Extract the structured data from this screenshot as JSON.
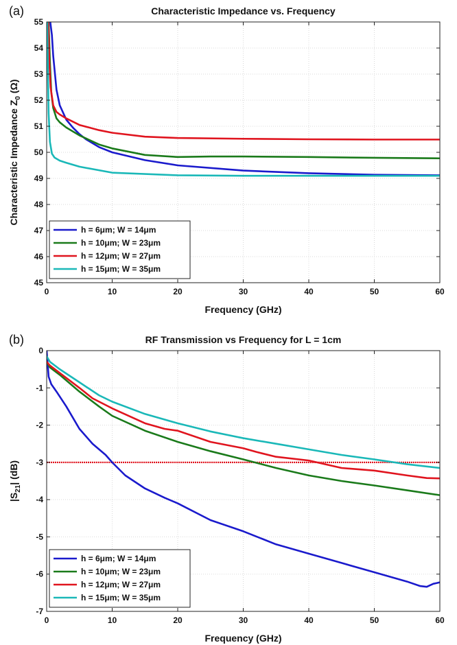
{
  "chart_data": [
    {
      "type": "line",
      "panel_label": "(a)",
      "title": "Characteristic Impedance vs. Frequency",
      "xlabel": "Frequency (GHz)",
      "ylabel": "Characteristic Impedance Z",
      "ylabel_sub": "0",
      "ylabel_unit": " (Ω)",
      "xlim": [
        0,
        60
      ],
      "ylim": [
        45,
        55
      ],
      "xticks": [
        0,
        10,
        20,
        30,
        40,
        50,
        60
      ],
      "yticks": [
        45,
        46,
        47,
        48,
        49,
        50,
        51,
        52,
        53,
        54,
        55
      ],
      "grid": true,
      "legend_position": "bottom-left",
      "series": [
        {
          "name": "h = 6μm; W = 14μm",
          "color": "#1a1acc",
          "x": [
            0.55,
            0.8,
            1,
            1.5,
            2,
            3,
            4,
            5,
            6,
            8,
            10,
            15,
            20,
            30,
            40,
            50,
            60
          ],
          "y": [
            55,
            54.5,
            53.7,
            52.4,
            51.8,
            51.25,
            50.95,
            50.7,
            50.5,
            50.2,
            50.0,
            49.7,
            49.5,
            49.3,
            49.2,
            49.14,
            49.12
          ]
        },
        {
          "name": "h = 10μm; W = 23μm",
          "color": "#1a7a1a",
          "x": [
            0.3,
            0.5,
            0.7,
            1,
            1.5,
            2,
            3,
            5,
            8,
            10,
            15,
            20,
            25,
            30,
            40,
            50,
            60
          ],
          "y": [
            55,
            53.5,
            52.3,
            51.7,
            51.3,
            51.15,
            50.95,
            50.65,
            50.3,
            50.15,
            49.9,
            49.82,
            49.84,
            49.84,
            49.82,
            49.79,
            49.77
          ]
        },
        {
          "name": "h = 12μm; W = 27μm",
          "color": "#e0141e",
          "x": [
            0.25,
            0.4,
            0.6,
            1,
            1.5,
            2,
            3,
            5,
            8,
            10,
            15,
            20,
            30,
            40,
            50,
            60
          ],
          "y": [
            55,
            53.5,
            52.5,
            51.8,
            51.55,
            51.45,
            51.3,
            51.05,
            50.85,
            50.75,
            50.6,
            50.55,
            50.52,
            50.5,
            50.49,
            50.49
          ]
        },
        {
          "name": "h = 15μm; W = 35μm",
          "color": "#1ab8b8",
          "x": [
            0.1,
            0.2,
            0.3,
            0.5,
            0.8,
            1.2,
            2,
            3,
            5,
            10,
            20,
            30,
            40,
            50,
            60
          ],
          "y": [
            55,
            53,
            51.5,
            50.4,
            49.95,
            49.8,
            49.68,
            49.6,
            49.45,
            49.22,
            49.12,
            49.1,
            49.1,
            49.1,
            49.1
          ]
        }
      ]
    },
    {
      "type": "line",
      "panel_label": "(b)",
      "title": "RF Transmission vs Frequency for L = 1cm",
      "xlabel": "Frequency (GHz)",
      "ylabel": "|S",
      "ylabel_sub": "21",
      "ylabel_unit": "| (dB)",
      "xlim": [
        0,
        60
      ],
      "ylim": [
        -7,
        0
      ],
      "xticks": [
        0,
        10,
        20,
        30,
        40,
        50,
        60
      ],
      "yticks": [
        -7,
        -6,
        -5,
        -4,
        -3,
        -2,
        -1,
        0
      ],
      "grid": true,
      "legend_position": "bottom-left",
      "reference_line": {
        "y": -3,
        "color": "#e0141e"
      },
      "series": [
        {
          "name": "h = 6μm; W = 14μm",
          "color": "#1a1acc",
          "x": [
            0,
            0.3,
            0.7,
            1.5,
            3,
            5,
            7,
            9,
            10,
            12,
            15,
            18,
            20,
            25,
            30,
            35,
            40,
            45,
            50,
            55,
            57,
            58,
            59,
            60
          ],
          "y": [
            0,
            -0.7,
            -0.9,
            -1.1,
            -1.5,
            -2.1,
            -2.5,
            -2.8,
            -3.0,
            -3.35,
            -3.7,
            -3.95,
            -4.1,
            -4.55,
            -4.85,
            -5.2,
            -5.45,
            -5.7,
            -5.95,
            -6.2,
            -6.32,
            -6.34,
            -6.26,
            -6.22
          ]
        },
        {
          "name": "h = 10μm; W = 23μm",
          "color": "#1a7a1a",
          "x": [
            0,
            0.5,
            2,
            5,
            8,
            10,
            15,
            20,
            25,
            30,
            35,
            40,
            45,
            50,
            55,
            60
          ],
          "y": [
            -0.3,
            -0.45,
            -0.65,
            -1.1,
            -1.5,
            -1.75,
            -2.15,
            -2.45,
            -2.7,
            -2.92,
            -3.15,
            -3.35,
            -3.5,
            -3.62,
            -3.75,
            -3.88
          ]
        },
        {
          "name": "h = 12μm; W = 27μm",
          "color": "#e0141e",
          "x": [
            0,
            0.5,
            2,
            5,
            7,
            10,
            15,
            18,
            20,
            25,
            30,
            32,
            35,
            40,
            45,
            50,
            55,
            58,
            60
          ],
          "y": [
            -0.3,
            -0.4,
            -0.6,
            -1.0,
            -1.28,
            -1.55,
            -1.95,
            -2.1,
            -2.15,
            -2.45,
            -2.62,
            -2.72,
            -2.85,
            -2.95,
            -3.15,
            -3.22,
            -3.35,
            -3.42,
            -3.43
          ]
        },
        {
          "name": "h = 15μm; W = 35μm",
          "color": "#1ab8b8",
          "x": [
            0,
            0.5,
            2,
            5,
            8,
            10,
            15,
            20,
            25,
            30,
            35,
            40,
            45,
            50,
            55,
            60
          ],
          "y": [
            -0.15,
            -0.3,
            -0.5,
            -0.85,
            -1.2,
            -1.37,
            -1.7,
            -1.95,
            -2.17,
            -2.35,
            -2.5,
            -2.65,
            -2.8,
            -2.92,
            -3.05,
            -3.15
          ]
        }
      ]
    }
  ]
}
